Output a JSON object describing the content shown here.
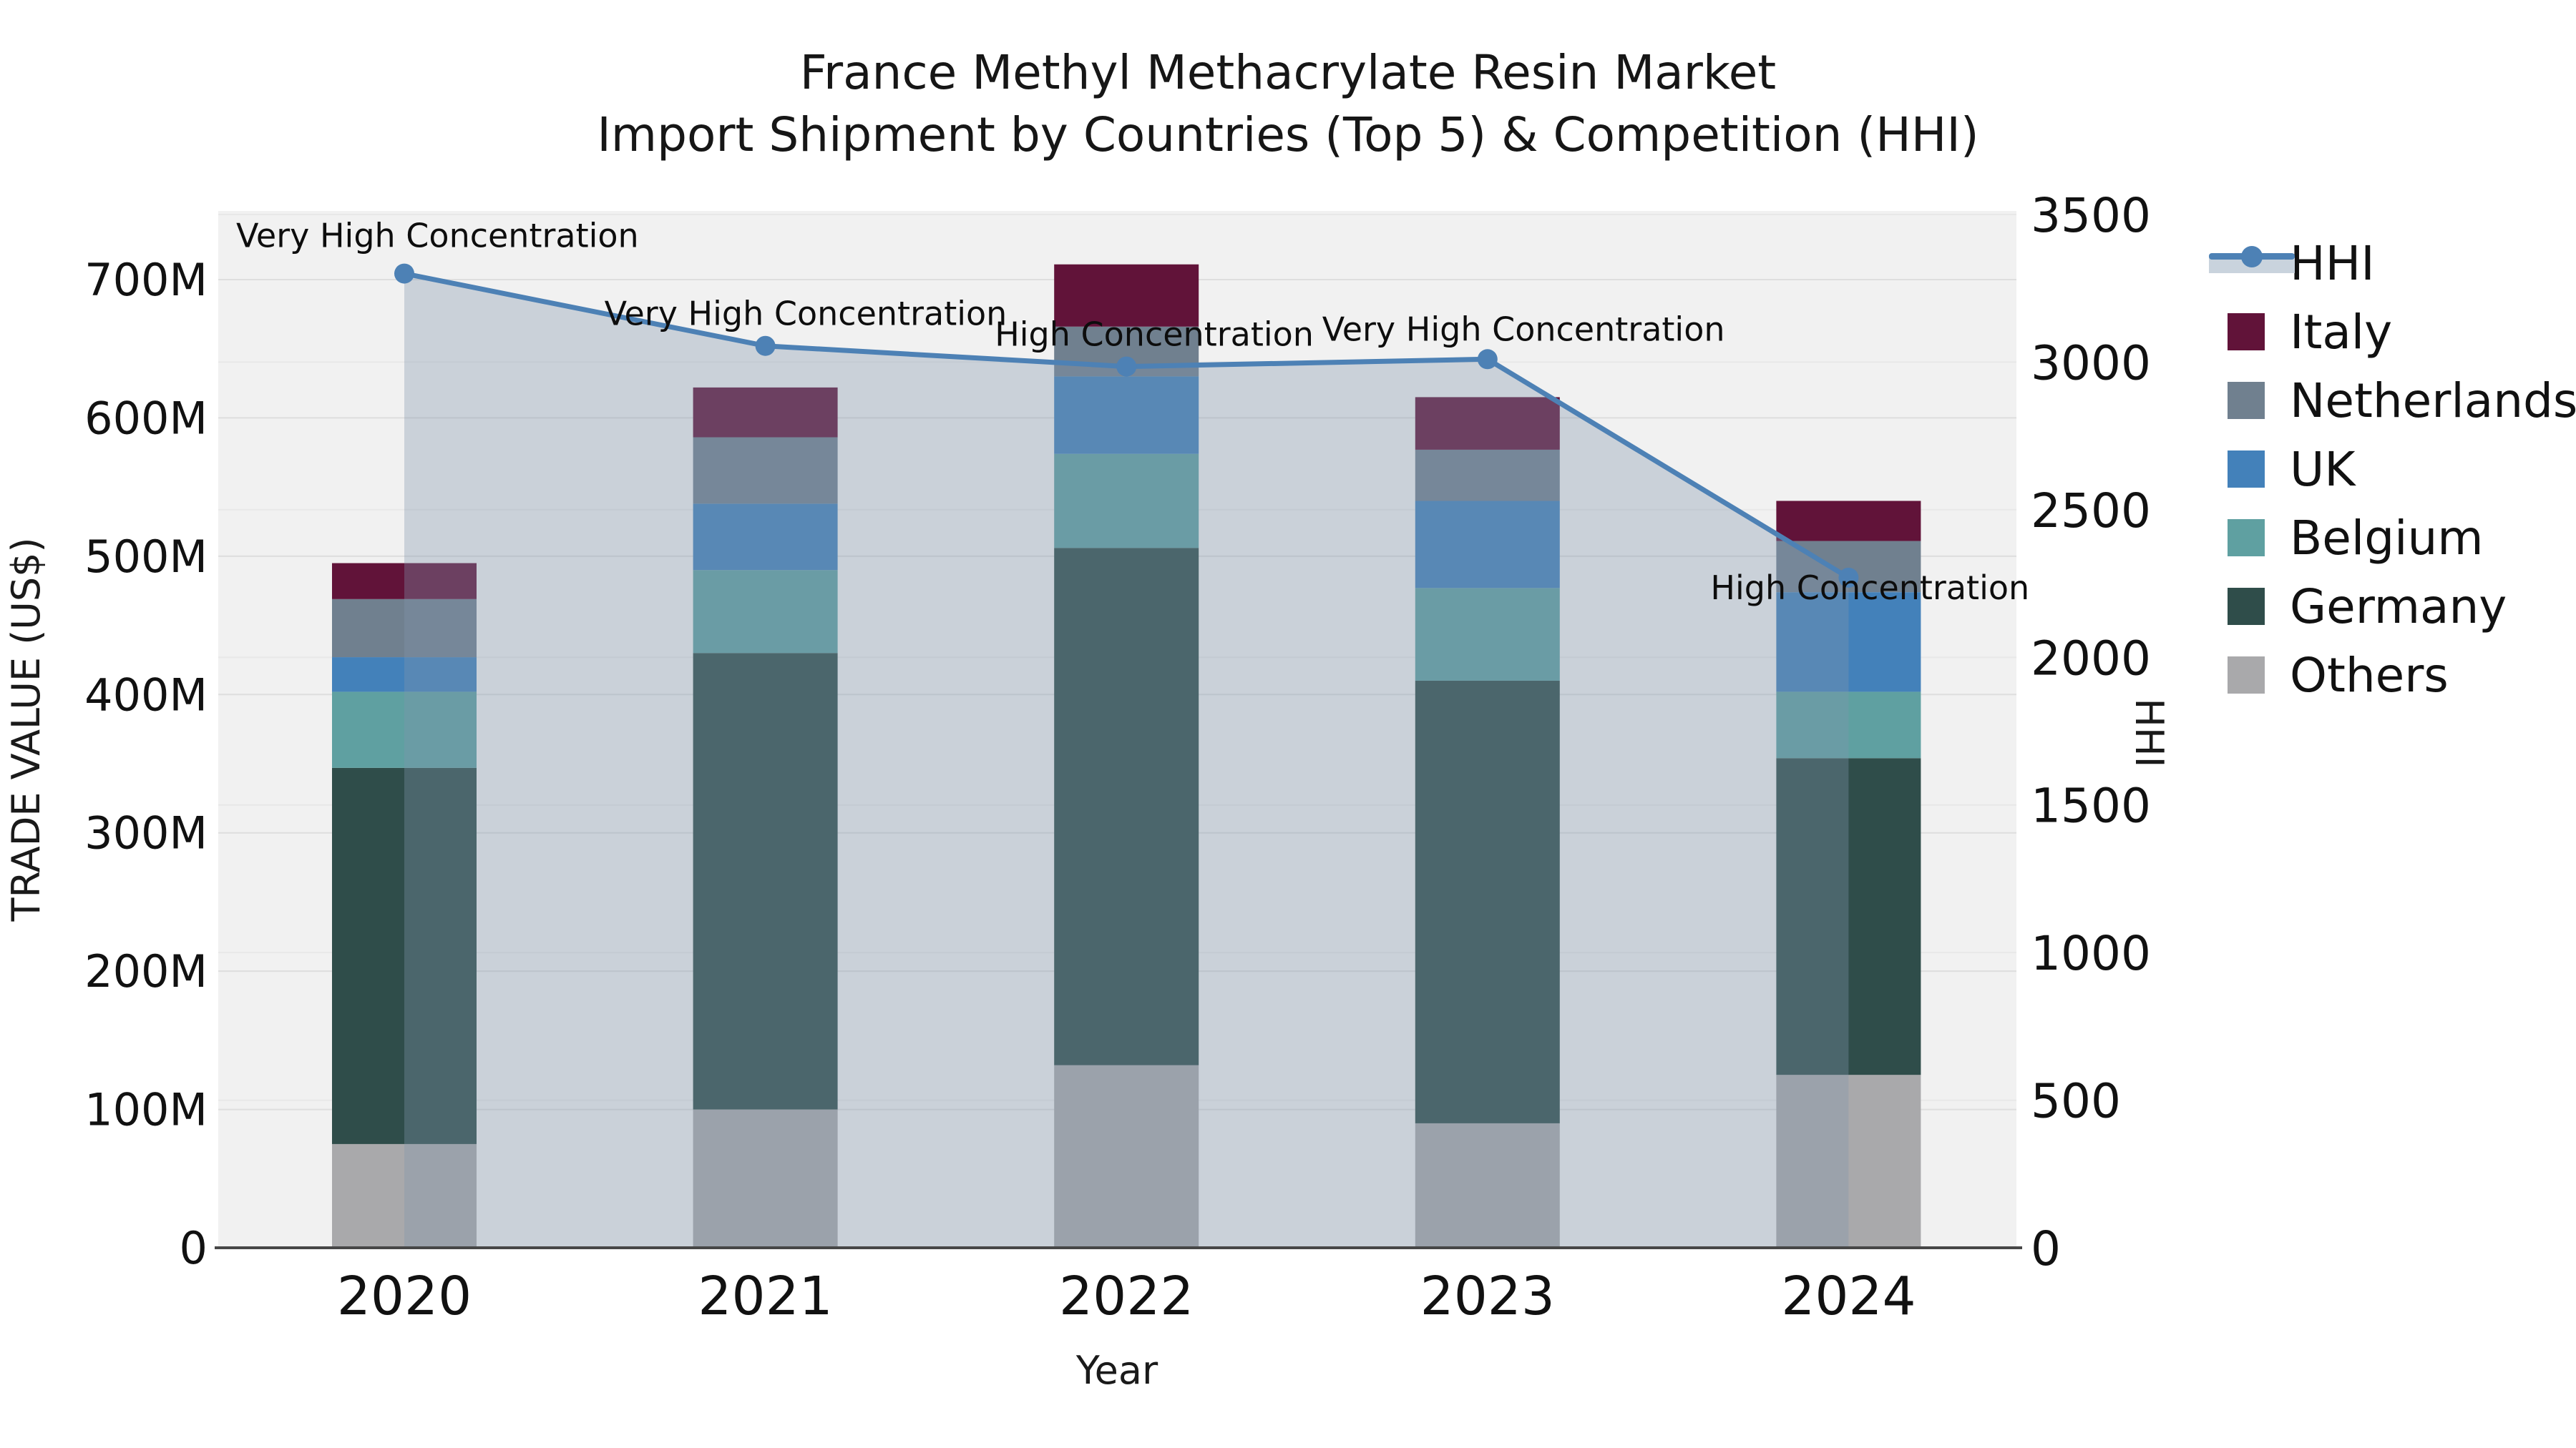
{
  "title": {
    "line1": "France Methyl Methacrylate Resin Market",
    "line2": "Import Shipment by Countries (Top 5) & Competition (HHI)"
  },
  "axes": {
    "left_title": "TRADE VALUE (US$)",
    "right_title": "HHI",
    "x_title": "Year",
    "left_ticks": [
      "0",
      "100M",
      "200M",
      "300M",
      "400M",
      "500M",
      "600M",
      "700M"
    ],
    "right_ticks": [
      "0",
      "500",
      "1000",
      "1500",
      "2000",
      "2500",
      "3000",
      "3500"
    ],
    "left_max_m": 700,
    "right_max": 3500
  },
  "chart_data": {
    "type": "composite-stacked-bar-with-line",
    "categories": [
      "2020",
      "2021",
      "2022",
      "2023",
      "2024"
    ],
    "bar_unit": "US$ millions",
    "stack_order_bottom_to_top": [
      "Others",
      "Germany",
      "Belgium",
      "UK",
      "Netherlands",
      "Italy"
    ],
    "series": [
      {
        "name": "Others",
        "color": "#a9a9ab",
        "values": [
          75,
          100,
          132,
          90,
          125
        ]
      },
      {
        "name": "Germany",
        "color": "#2f4d4a",
        "values": [
          272,
          330,
          374,
          320,
          229
        ]
      },
      {
        "name": "Belgium",
        "color": "#5fa0a1",
        "values": [
          55,
          60,
          68,
          67,
          48
        ]
      },
      {
        "name": "UK",
        "color": "#4381ba",
        "values": [
          25,
          48,
          56,
          63,
          72
        ]
      },
      {
        "name": "Netherlands",
        "color": "#70808f",
        "values": [
          42,
          48,
          36,
          37,
          37
        ]
      },
      {
        "name": "Italy",
        "color": "#611339",
        "values": [
          26,
          36,
          45,
          38,
          29
        ]
      }
    ],
    "bar_totals_m": [
      495,
      622,
      711,
      615,
      540
    ],
    "line_series": {
      "name": "HHI",
      "color": "#4d81b5",
      "fill_color": "#8296ac",
      "fill_alpha": 0.35,
      "values": [
        3300,
        3055,
        2985,
        3010,
        2270
      ]
    },
    "annotations": [
      {
        "category": "2020",
        "text": "Very High Concentration"
      },
      {
        "category": "2021",
        "text": "Very High Concentration"
      },
      {
        "category": "2022",
        "text": "High Concentration"
      },
      {
        "category": "2023",
        "text": "Very High Concentration"
      },
      {
        "category": "2024",
        "text": "High Concentration"
      }
    ],
    "legend_order": [
      "HHI",
      "Italy",
      "Netherlands",
      "UK",
      "Belgium",
      "Germany",
      "Others"
    ],
    "layout_hints": {
      "plot_bg": "#f1f1f1",
      "grid_color_left": "#dedede",
      "grid_color_right": "#e8e8e8",
      "axis_line_color": "#474747",
      "legend_position": "right",
      "left_range_m": [
        0,
        751
      ],
      "right_range": [
        0,
        3500
      ]
    }
  }
}
